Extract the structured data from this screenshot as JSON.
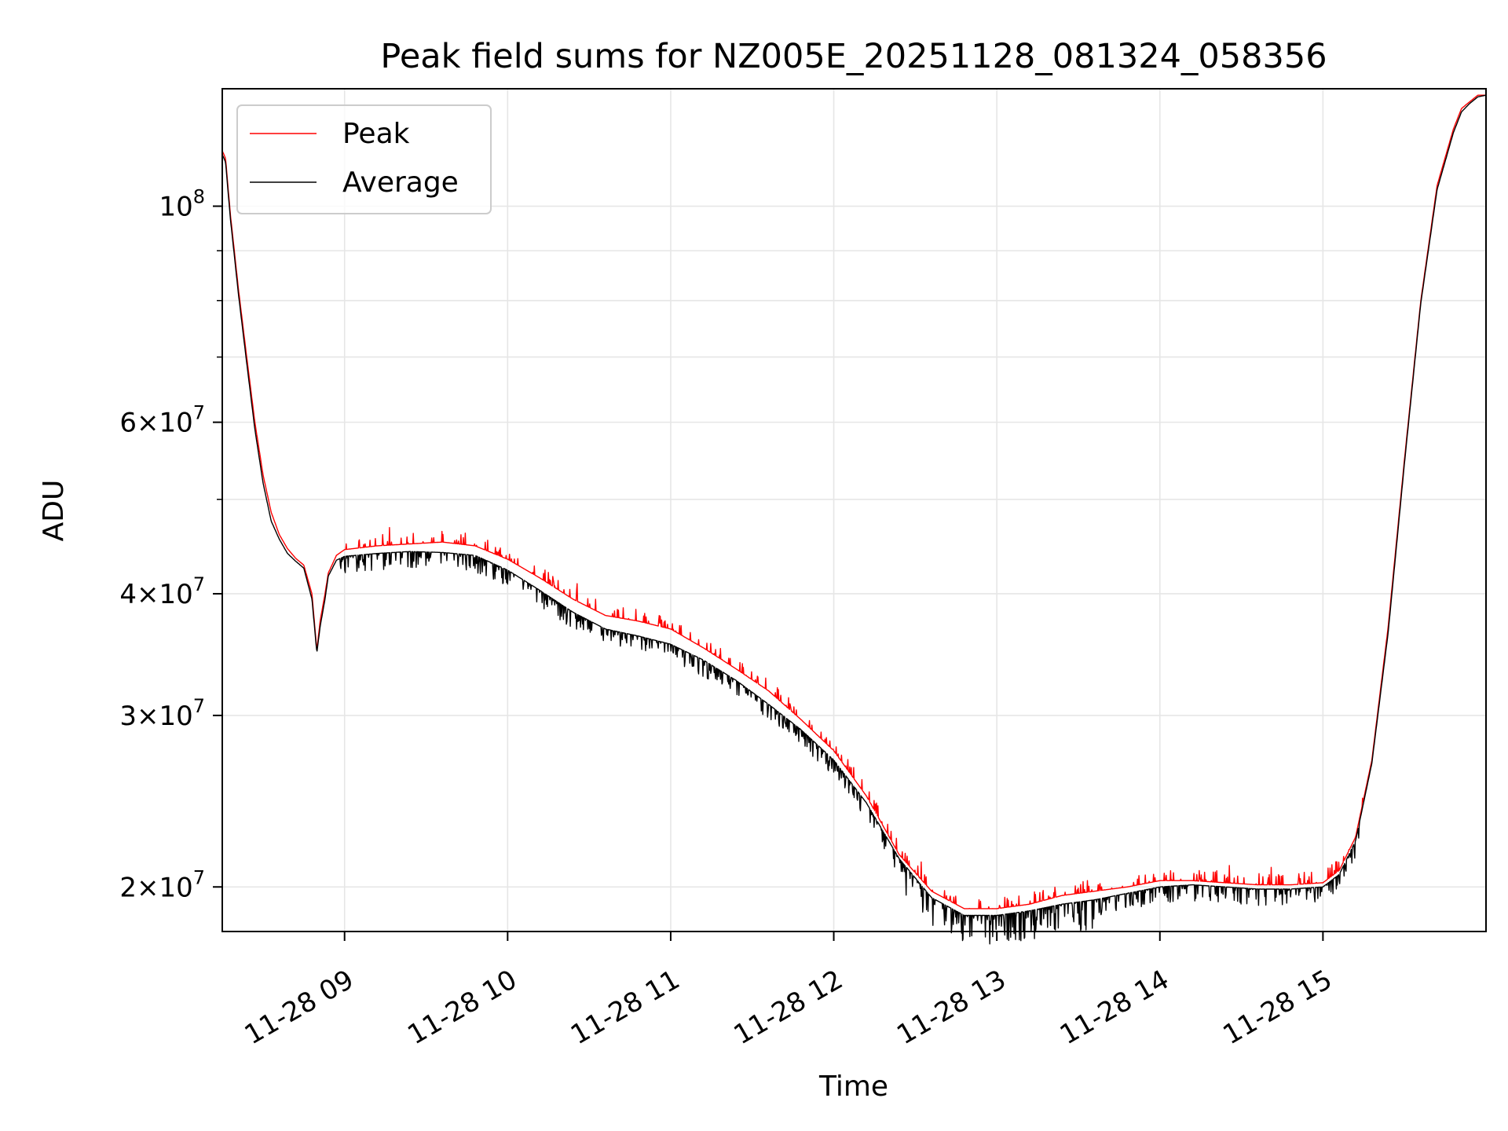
{
  "chart_data": {
    "type": "line",
    "title": "Peak field sums for NZ005E_20251128_081324_058356",
    "xlabel": "Time",
    "ylabel": "ADU",
    "yscale": "log",
    "xlim": [
      8.25,
      16.0
    ],
    "ylim": [
      18000000,
      132000000
    ],
    "grid": true,
    "legend_position": "upper-left",
    "x_ticks": [
      {
        "value": 9,
        "label": "11-28 09"
      },
      {
        "value": 10,
        "label": "11-28 10"
      },
      {
        "value": 11,
        "label": "11-28 11"
      },
      {
        "value": 12,
        "label": "11-28 12"
      },
      {
        "value": 13,
        "label": "11-28 13"
      },
      {
        "value": 14,
        "label": "11-28 14"
      },
      {
        "value": 15,
        "label": "11-28 15"
      }
    ],
    "y_ticks": [
      {
        "value": 20000000,
        "mantissa": "2",
        "times": "×",
        "base": "10",
        "exp": "7"
      },
      {
        "value": 30000000,
        "mantissa": "3",
        "times": "×",
        "base": "10",
        "exp": "7"
      },
      {
        "value": 40000000,
        "mantissa": "4",
        "times": "×",
        "base": "10",
        "exp": "7"
      },
      {
        "value": 60000000,
        "mantissa": "6",
        "times": "×",
        "base": "10",
        "exp": "7"
      },
      {
        "value": 100000000,
        "mantissa": "",
        "times": "",
        "base": "10",
        "exp": "8"
      }
    ],
    "y_minor_ticks": [
      50000000,
      70000000,
      80000000,
      90000000
    ],
    "series": [
      {
        "name": "Peak",
        "color": "#ff0000",
        "x": [
          8.25,
          8.27,
          8.3,
          8.35,
          8.4,
          8.45,
          8.5,
          8.55,
          8.6,
          8.65,
          8.7,
          8.75,
          8.8,
          8.83,
          8.85,
          8.88,
          8.9,
          8.95,
          9.0,
          9.2,
          9.4,
          9.6,
          9.8,
          10.0,
          10.2,
          10.4,
          10.6,
          10.8,
          11.0,
          11.2,
          11.4,
          11.6,
          11.8,
          12.0,
          12.2,
          12.4,
          12.6,
          12.8,
          13.0,
          13.2,
          13.4,
          13.6,
          13.8,
          14.0,
          14.2,
          14.4,
          14.6,
          14.8,
          15.0,
          15.1,
          15.2,
          15.3,
          15.4,
          15.5,
          15.6,
          15.7,
          15.8,
          15.85,
          15.9,
          15.95,
          16.0
        ],
        "y": [
          114000000,
          112000000,
          98000000,
          82000000,
          70000000,
          60000000,
          53000000,
          48500000,
          46000000,
          44500000,
          43500000,
          42800000,
          40000000,
          35000000,
          37500000,
          40000000,
          42000000,
          43800000,
          44400000,
          44800000,
          45000000,
          45200000,
          44800000,
          43400000,
          41500000,
          39500000,
          38000000,
          37500000,
          36800000,
          35200000,
          33500000,
          31800000,
          29700000,
          27600000,
          24800000,
          21600000,
          19800000,
          19000000,
          19000000,
          19200000,
          19600000,
          19800000,
          20000000,
          20300000,
          20300000,
          20200000,
          20100000,
          20100000,
          20200000,
          20800000,
          22500000,
          27000000,
          37000000,
          55000000,
          80000000,
          105000000,
          120000000,
          126000000,
          128000000,
          130000000,
          130000000
        ]
      },
      {
        "name": "Average",
        "color": "#000000",
        "x": [
          8.25,
          8.27,
          8.3,
          8.35,
          8.4,
          8.45,
          8.5,
          8.55,
          8.6,
          8.65,
          8.7,
          8.75,
          8.8,
          8.83,
          8.85,
          8.88,
          8.9,
          8.95,
          9.0,
          9.2,
          9.4,
          9.6,
          9.8,
          10.0,
          10.2,
          10.4,
          10.6,
          10.8,
          11.0,
          11.2,
          11.4,
          11.6,
          11.8,
          12.0,
          12.2,
          12.4,
          12.6,
          12.8,
          13.0,
          13.2,
          13.4,
          13.6,
          13.8,
          14.0,
          14.2,
          14.4,
          14.6,
          14.8,
          15.0,
          15.1,
          15.2,
          15.3,
          15.4,
          15.5,
          15.6,
          15.7,
          15.8,
          15.85,
          15.9,
          15.95,
          16.0
        ],
        "y": [
          113000000,
          111000000,
          97000000,
          81000000,
          69000000,
          59000000,
          52000000,
          47500000,
          45500000,
          44000000,
          43200000,
          42500000,
          39500000,
          34800000,
          37000000,
          39500000,
          41700000,
          43300000,
          43700000,
          44000000,
          44200000,
          44100000,
          43800000,
          42300000,
          40300000,
          38300000,
          36800000,
          36200000,
          35500000,
          34200000,
          32600000,
          30800000,
          29000000,
          27000000,
          24400000,
          21400000,
          19500000,
          18700000,
          18700000,
          18900000,
          19200000,
          19400000,
          19700000,
          20000000,
          20100000,
          20000000,
          19900000,
          19900000,
          20000000,
          20600000,
          22300000,
          26800000,
          36500000,
          54500000,
          79500000,
          104000000,
          119000000,
          125000000,
          127500000,
          129500000,
          130000000
        ]
      }
    ]
  }
}
